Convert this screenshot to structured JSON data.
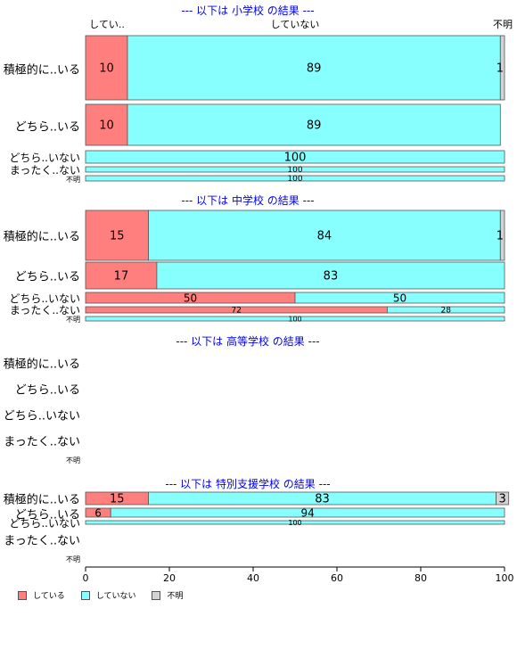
{
  "chart_data": {
    "type": "bar",
    "stacked": true,
    "orientation": "horizontal",
    "series_names": [
      "している",
      "していない",
      "不明"
    ],
    "colors": [
      "#FF7F7F",
      "#88FFFF",
      "#D3D3D3"
    ],
    "top_labels": [
      "してい..",
      "していない",
      "不明"
    ],
    "xlim": [
      0,
      100
    ],
    "xticks": [
      0,
      20,
      40,
      60,
      80,
      100
    ],
    "groups": [
      {
        "title": "--- 以下は 小学校 の結果 ---",
        "rows": [
          {
            "label": "積極的に..いる",
            "values": [
              10,
              89,
              1
            ]
          },
          {
            "label": "どちら..いる",
            "values": [
              10,
              89,
              0
            ]
          },
          {
            "label": "どちら..いない",
            "values": [
              0,
              100,
              0
            ]
          },
          {
            "label": "まったく..ない",
            "values": [
              0,
              100,
              0
            ]
          },
          {
            "label": "不明",
            "values": [
              0,
              100,
              0
            ]
          }
        ]
      },
      {
        "title": "--- 以下は 中学校 の結果 ---",
        "rows": [
          {
            "label": "積極的に..いる",
            "values": [
              15,
              84,
              1
            ]
          },
          {
            "label": "どちら..いる",
            "values": [
              17,
              83,
              0
            ]
          },
          {
            "label": "どちら..いない",
            "values": [
              50,
              50,
              0
            ]
          },
          {
            "label": "まったく..ない",
            "values": [
              72,
              28,
              0
            ]
          },
          {
            "label": "不明",
            "values": [
              0,
              100,
              0
            ]
          }
        ]
      },
      {
        "title": "--- 以下は 高等学校 の結果 ---",
        "rows": [
          {
            "label": "積極的に..いる",
            "values": null
          },
          {
            "label": "どちら..いる",
            "values": null
          },
          {
            "label": "どちら..いない",
            "values": null
          },
          {
            "label": "まったく..ない",
            "values": null
          },
          {
            "label": "不明",
            "values": null
          }
        ]
      },
      {
        "title": "--- 以下は 特別支援学校 の結果 ---",
        "rows": [
          {
            "label": "積極的に..いる",
            "values": [
              15,
              83,
              3
            ]
          },
          {
            "label": "どちら..いる",
            "values": [
              6,
              94,
              0
            ]
          },
          {
            "label": "どちら..いない",
            "values": [
              0,
              100,
              0
            ]
          },
          {
            "label": "まったく..ない",
            "values": null
          },
          {
            "label": "不明",
            "values": null
          }
        ]
      }
    ]
  }
}
